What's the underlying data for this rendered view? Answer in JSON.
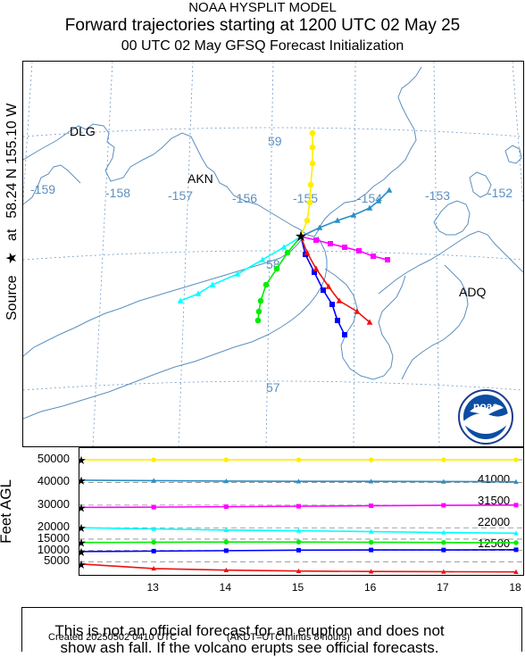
{
  "header": {
    "line1": "NOAA HYSPLIT MODEL",
    "line2": "Forward trajectories starting at 1200 UTC 02 May 25",
    "line3": "00 UTC 02 May    GFSQ  Forecast Initialization"
  },
  "source_axis": {
    "label": "Source",
    "at": "at",
    "coords": "58.24 N  155.10 W",
    "star": "★"
  },
  "map": {
    "lon_labels": [
      "-159",
      "-158",
      "-157",
      "-156",
      "-155",
      "-154",
      "-153",
      "-152"
    ],
    "lat_labels": [
      "59",
      "58",
      "57"
    ],
    "places": [
      "DLG",
      "AKN",
      "ADQ"
    ],
    "logo_text": "noaa",
    "colors": {
      "coast": "#5b8fbf",
      "grid": "#6f98c8"
    }
  },
  "chart_data": {
    "type": "line",
    "source": {
      "lat": 58.24,
      "lon": -155.1
    },
    "x_hours": [
      12,
      13,
      14,
      15,
      16,
      17,
      18
    ],
    "series": [
      {
        "color": "#ffee00",
        "marker": "circle",
        "height_ft": [
          50000,
          50000,
          50000,
          50000,
          50000,
          50000,
          50000
        ]
      },
      {
        "color": "#2a8fc6",
        "marker": "triangle",
        "height_ft": [
          41000,
          40800,
          40600,
          40500,
          40500,
          40400,
          40300
        ]
      },
      {
        "color": "#ff00ff",
        "marker": "square",
        "height_ft": [
          29000,
          29100,
          29300,
          29500,
          29700,
          29900,
          30000
        ]
      },
      {
        "color": "#00ffff",
        "marker": "triangle",
        "height_ft": [
          20000,
          19500,
          19000,
          18700,
          18300,
          17900,
          17600
        ]
      },
      {
        "color": "#00ee00",
        "marker": "circle",
        "height_ft": [
          13500,
          13600,
          13700,
          13700,
          13600,
          13500,
          13400
        ]
      },
      {
        "color": "#0000ff",
        "marker": "square",
        "height_ft": [
          9500,
          9700,
          9900,
          10100,
          10200,
          10200,
          10300
        ]
      },
      {
        "color": "#ee1111",
        "marker": "triangle",
        "height_ft": [
          4000,
          2000,
          1300,
          900,
          700,
          600,
          500
        ]
      }
    ],
    "ylabel": "Feet AGL",
    "y_levels": [
      "50000",
      "40000",
      "30000",
      "20000",
      "15000",
      "10000",
      "5000"
    ],
    "right_labels": [
      "41000",
      "31500",
      "22000",
      "12500"
    ],
    "x_ticks": [
      "13",
      "14",
      "15",
      "16",
      "17",
      "18"
    ]
  },
  "disclaimer": {
    "line1": "This is not an official forecast for an eruption and does not",
    "line2": "show ash fall. If the volcano erupts see official forecasts."
  },
  "footer": {
    "created": "Created 20250502 0410 UTC",
    "tz_note": "(AKDT=UTC minus 8 hours)"
  }
}
